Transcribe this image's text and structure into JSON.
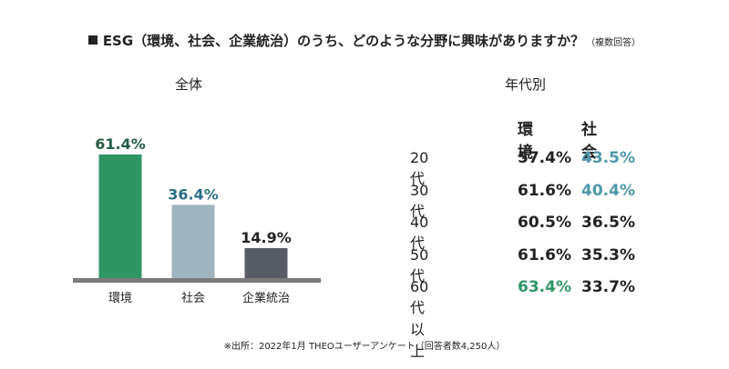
{
  "title": {
    "square": "■",
    "question": "ESG（環境、社会、企業統治）のうち、どのような分野に興味がありますか？",
    "note": "（複数回答）"
  },
  "left_label": "全体",
  "right_label": "年代別",
  "chart_data": [
    {
      "type": "bar",
      "categories": [
        "環境",
        "社会",
        "企業統治"
      ],
      "values": [
        61.4,
        36.4,
        14.9
      ],
      "value_labels": [
        "61.4%",
        "36.4%",
        "14.9%"
      ],
      "bar_colors": [
        "#2f9563",
        "#9fb4be",
        "#585c66"
      ],
      "label_colors": [
        "#245d45",
        "#2b6e88",
        "#222222"
      ],
      "baseline_color": "#7a7a7a",
      "ylim": [
        0,
        61.4
      ]
    },
    {
      "type": "table",
      "columns": [
        "環境",
        "社会"
      ],
      "rows": [
        {
          "label": "20 代",
          "values": [
            "57.4%",
            "43.5%"
          ],
          "colors": [
            "#222222",
            "#4f97ad"
          ]
        },
        {
          "label": "30 代",
          "values": [
            "61.6%",
            "40.4%"
          ],
          "colors": [
            "#222222",
            "#4f97ad"
          ]
        },
        {
          "label": "40 代",
          "values": [
            "60.5%",
            "36.5%"
          ],
          "colors": [
            "#222222",
            "#222222"
          ]
        },
        {
          "label": "50 代",
          "values": [
            "61.6%",
            "35.3%"
          ],
          "colors": [
            "#222222",
            "#222222"
          ]
        },
        {
          "label": "60 代以上",
          "values": [
            "63.4%",
            "33.7%"
          ],
          "colors": [
            "#2f9563",
            "#222222"
          ]
        }
      ]
    }
  ],
  "footnote": "※出所：2022年1月 THEOユーザーアンケート（回答者数4,250人）"
}
